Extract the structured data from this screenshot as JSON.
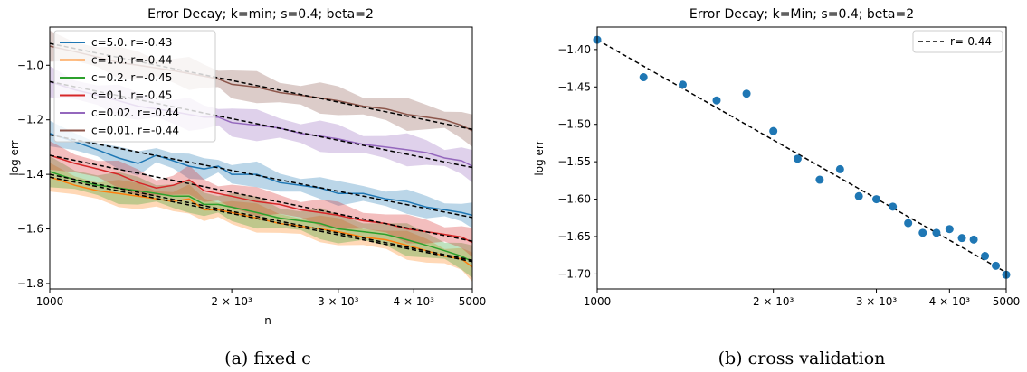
{
  "chart_data": [
    {
      "type": "line",
      "title": "Error Decay; k=min; s=0.4; beta=2",
      "xlabel": "n",
      "ylabel": "log err",
      "x_scale": "log",
      "xlim": [
        1000,
        5000
      ],
      "ylim": [
        -1.82,
        -0.86
      ],
      "x_ticks": [
        {
          "value": 1000,
          "label": "1000"
        },
        {
          "value": 2000,
          "label": "2 × 10³"
        },
        {
          "value": 3000,
          "label": "3 × 10³"
        },
        {
          "value": 4000,
          "label": "4 × 10³"
        },
        {
          "value": 5000,
          "label": "5000"
        }
      ],
      "y_ticks": [
        {
          "value": -1.0,
          "label": "−1.0"
        },
        {
          "value": -1.2,
          "label": "−1.2"
        },
        {
          "value": -1.4,
          "label": "−1.4"
        },
        {
          "value": -1.6,
          "label": "−1.6"
        },
        {
          "value": -1.8,
          "label": "−1.8"
        }
      ],
      "grid": false,
      "legend": {
        "position": "top-left"
      },
      "fit_line_style": "dashed black",
      "x": [
        1000,
        1100,
        1200,
        1300,
        1400,
        1500,
        1600,
        1700,
        1800,
        1900,
        2000,
        2200,
        2400,
        2600,
        2800,
        3000,
        3300,
        3600,
        3900,
        4200,
        4500,
        4800,
        5000
      ],
      "series": [
        {
          "name": "c=5.0. r=-0.43",
          "color": "#1f77b4",
          "fit": [
            -1.255,
            -1.558
          ],
          "band": 0.035,
          "values": [
            -1.25,
            -1.28,
            -1.31,
            -1.34,
            -1.36,
            -1.33,
            -1.35,
            -1.37,
            -1.38,
            -1.37,
            -1.4,
            -1.4,
            -1.43,
            -1.44,
            -1.45,
            -1.47,
            -1.47,
            -1.49,
            -1.5,
            -1.52,
            -1.53,
            -1.54,
            -1.55
          ]
        },
        {
          "name": "c=1.0. r=-0.44",
          "color": "#ff7f0e",
          "fit": [
            -1.41,
            -1.72
          ],
          "band": 0.04,
          "values": [
            -1.41,
            -1.44,
            -1.46,
            -1.47,
            -1.48,
            -1.49,
            -1.5,
            -1.49,
            -1.53,
            -1.53,
            -1.54,
            -1.56,
            -1.58,
            -1.59,
            -1.6,
            -1.61,
            -1.63,
            -1.64,
            -1.66,
            -1.68,
            -1.7,
            -1.71,
            -1.74
          ]
        },
        {
          "name": "c=0.2. r=-0.45",
          "color": "#2ca02c",
          "fit": [
            -1.4,
            -1.715
          ],
          "band": 0.045,
          "values": [
            -1.39,
            -1.42,
            -1.44,
            -1.45,
            -1.46,
            -1.47,
            -1.48,
            -1.48,
            -1.51,
            -1.51,
            -1.52,
            -1.54,
            -1.56,
            -1.57,
            -1.58,
            -1.6,
            -1.61,
            -1.62,
            -1.64,
            -1.66,
            -1.68,
            -1.7,
            -1.72
          ]
        },
        {
          "name": "c=0.1. r=-0.45",
          "color": "#d62728",
          "fit": [
            -1.33,
            -1.645
          ],
          "band": 0.04,
          "values": [
            -1.33,
            -1.36,
            -1.38,
            -1.4,
            -1.43,
            -1.45,
            -1.44,
            -1.42,
            -1.46,
            -1.47,
            -1.48,
            -1.5,
            -1.51,
            -1.53,
            -1.54,
            -1.55,
            -1.57,
            -1.58,
            -1.6,
            -1.61,
            -1.62,
            -1.63,
            -1.65
          ]
        },
        {
          "name": "c=0.02. r=-0.44",
          "color": "#9467bd",
          "fit": [
            -1.06,
            -1.375
          ],
          "band": 0.045,
          "values": [
            -1.06,
            -1.09,
            -1.11,
            -1.13,
            -1.15,
            -1.16,
            -1.17,
            -1.18,
            -1.19,
            -1.19,
            -1.21,
            -1.22,
            -1.23,
            -1.25,
            -1.26,
            -1.27,
            -1.29,
            -1.3,
            -1.31,
            -1.32,
            -1.34,
            -1.35,
            -1.37
          ]
        },
        {
          "name": "c=0.01. r=-0.44",
          "color": "#8c564b",
          "fit": [
            -0.92,
            -1.235
          ],
          "band": 0.045,
          "values": [
            -0.93,
            -0.95,
            -0.97,
            -0.99,
            -1.0,
            -1.01,
            -1.02,
            -1.03,
            -1.04,
            -1.05,
            -1.07,
            -1.08,
            -1.1,
            -1.11,
            -1.12,
            -1.13,
            -1.15,
            -1.16,
            -1.18,
            -1.19,
            -1.2,
            -1.22,
            -1.24
          ]
        }
      ]
    },
    {
      "type": "scatter",
      "title": "Error Decay; k=Min; s=0.4; beta=2",
      "xlabel": "",
      "ylabel": "log err",
      "x_scale": "log",
      "xlim": [
        1000,
        5000
      ],
      "ylim": [
        -1.72,
        -1.37
      ],
      "x_ticks": [
        {
          "value": 1000,
          "label": "1000"
        },
        {
          "value": 2000,
          "label": "2 × 10³"
        },
        {
          "value": 3000,
          "label": "3 × 10³"
        },
        {
          "value": 4000,
          "label": "4 × 10³"
        },
        {
          "value": 5000,
          "label": "5000"
        }
      ],
      "y_ticks": [
        {
          "value": -1.4,
          "label": "−1.40"
        },
        {
          "value": -1.45,
          "label": "−1.45"
        },
        {
          "value": -1.5,
          "label": "−1.50"
        },
        {
          "value": -1.55,
          "label": "−1.55"
        },
        {
          "value": -1.6,
          "label": "−1.60"
        },
        {
          "value": -1.65,
          "label": "−1.65"
        },
        {
          "value": -1.7,
          "label": "−1.70"
        }
      ],
      "grid": false,
      "legend": {
        "position": "top-right"
      },
      "point_color": "#1f77b4",
      "fit": {
        "name": "r=-0.44",
        "style": "dashed black",
        "y_at_xmin": -1.387,
        "y_at_xmax": -1.698
      },
      "points": [
        {
          "x": 1000,
          "y": -1.387
        },
        {
          "x": 1200,
          "y": -1.437
        },
        {
          "x": 1400,
          "y": -1.447
        },
        {
          "x": 1600,
          "y": -1.468
        },
        {
          "x": 1800,
          "y": -1.459
        },
        {
          "x": 2000,
          "y": -1.509
        },
        {
          "x": 2200,
          "y": -1.546
        },
        {
          "x": 2400,
          "y": -1.574
        },
        {
          "x": 2600,
          "y": -1.56
        },
        {
          "x": 2800,
          "y": -1.596
        },
        {
          "x": 3000,
          "y": -1.6
        },
        {
          "x": 3200,
          "y": -1.61
        },
        {
          "x": 3400,
          "y": -1.632
        },
        {
          "x": 3600,
          "y": -1.645
        },
        {
          "x": 3800,
          "y": -1.645
        },
        {
          "x": 4000,
          "y": -1.64
        },
        {
          "x": 4200,
          "y": -1.652
        },
        {
          "x": 4400,
          "y": -1.654
        },
        {
          "x": 4600,
          "y": -1.676
        },
        {
          "x": 4800,
          "y": -1.689
        },
        {
          "x": 5000,
          "y": -1.701
        }
      ]
    }
  ],
  "captions": [
    "(a) fixed c",
    "(b) cross validation"
  ]
}
